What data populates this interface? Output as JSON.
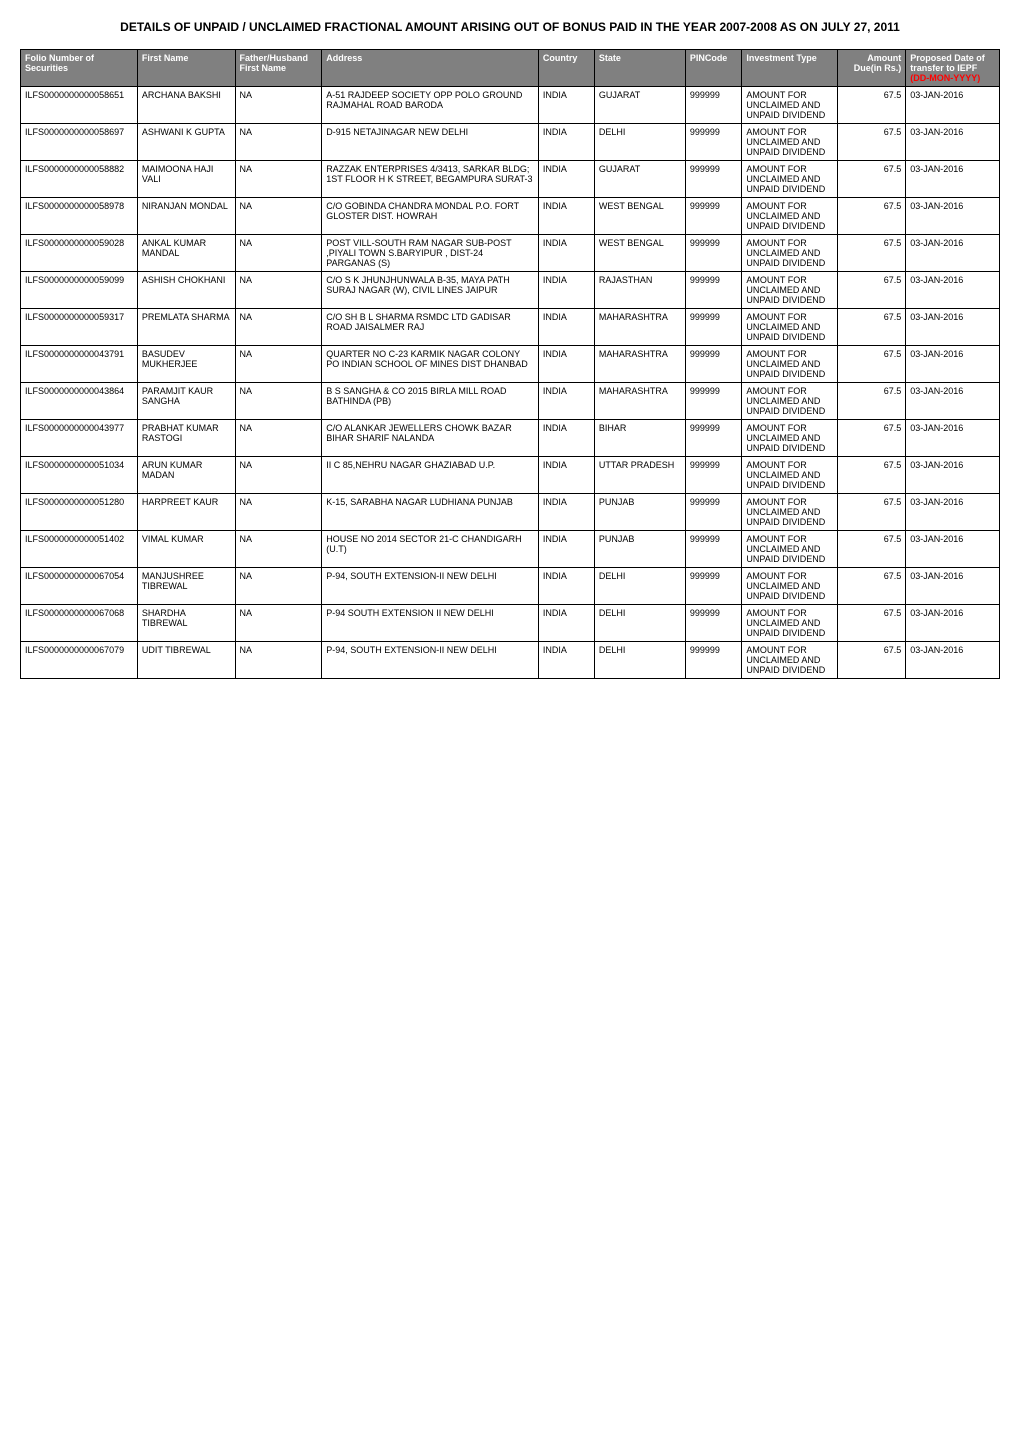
{
  "title": "DETAILS OF UNPAID / UNCLAIMED FRACTIONAL AMOUNT ARISING OUT OF BONUS PAID IN THE YEAR 2007-2008 AS ON JULY 27, 2011",
  "columns": [
    "Folio Number of Securities",
    "First Name",
    "Father/Husband First Name",
    "Address",
    "Country",
    "State",
    "PINCode",
    "Investment Type",
    "Amount Due(in Rs.)",
    "Proposed Date of transfer to IEPF"
  ],
  "date_label_red": "(DD-MON-YYYY)",
  "rows": [
    {
      "folio": "ILFS0000000000058651",
      "first_name": "ARCHANA BAKSHI",
      "father": "NA",
      "address": "A-51 RAJDEEP SOCIETY OPP POLO GROUND RAJMAHAL ROAD BARODA",
      "country": "INDIA",
      "state": "GUJARAT",
      "pincode": "999999",
      "investment": "AMOUNT FOR UNCLAIMED AND UNPAID DIVIDEND",
      "amount": "67.5",
      "date": "03-JAN-2016"
    },
    {
      "folio": "ILFS0000000000058697",
      "first_name": "ASHWANI K GUPTA",
      "father": "NA",
      "address": "D-915 NETAJINAGAR NEW DELHI",
      "country": "INDIA",
      "state": "DELHI",
      "pincode": "999999",
      "investment": "AMOUNT FOR UNCLAIMED AND UNPAID DIVIDEND",
      "amount": "67.5",
      "date": "03-JAN-2016"
    },
    {
      "folio": "ILFS0000000000058882",
      "first_name": "MAIMOONA HAJI VALI",
      "father": "NA",
      "address": "RAZZAK ENTERPRISES 4/3413, SARKAR BLDG; 1ST FLOOR H K STREET, BEGAMPURA SURAT-3",
      "country": "INDIA",
      "state": "GUJARAT",
      "pincode": "999999",
      "investment": "AMOUNT FOR UNCLAIMED AND UNPAID DIVIDEND",
      "amount": "67.5",
      "date": "03-JAN-2016"
    },
    {
      "folio": "ILFS0000000000058978",
      "first_name": "NIRANJAN MONDAL",
      "father": "NA",
      "address": "C/O GOBINDA CHANDRA MONDAL P.O. FORT GLOSTER DIST. HOWRAH",
      "country": "INDIA",
      "state": "WEST BENGAL",
      "pincode": "999999",
      "investment": "AMOUNT FOR UNCLAIMED AND UNPAID DIVIDEND",
      "amount": "67.5",
      "date": "03-JAN-2016"
    },
    {
      "folio": "ILFS0000000000059028",
      "first_name": "ANKAL KUMAR MANDAL",
      "father": "NA",
      "address": "POST VILL-SOUTH RAM NAGAR SUB-POST ,PIYALI TOWN S.BARYIPUR , DIST-24 PARGANAS (S)",
      "country": "INDIA",
      "state": "WEST BENGAL",
      "pincode": "999999",
      "investment": "AMOUNT FOR UNCLAIMED AND UNPAID DIVIDEND",
      "amount": "67.5",
      "date": "03-JAN-2016"
    },
    {
      "folio": "ILFS0000000000059099",
      "first_name": "ASHISH CHOKHANI",
      "father": "NA",
      "address": "C/O S K JHUNJHUNWALA B-35, MAYA PATH SURAJ NAGAR (W), CIVIL LINES JAIPUR",
      "country": "INDIA",
      "state": "RAJASTHAN",
      "pincode": "999999",
      "investment": "AMOUNT FOR UNCLAIMED AND UNPAID DIVIDEND",
      "amount": "67.5",
      "date": "03-JAN-2016"
    },
    {
      "folio": "ILFS0000000000059317",
      "first_name": "PREMLATA SHARMA",
      "father": "NA",
      "address": "C/O SH B L SHARMA RSMDC LTD GADISAR ROAD JAISALMER RAJ",
      "country": "INDIA",
      "state": "MAHARASHTRA",
      "pincode": "999999",
      "investment": "AMOUNT FOR UNCLAIMED AND UNPAID DIVIDEND",
      "amount": "67.5",
      "date": "03-JAN-2016"
    },
    {
      "folio": "ILFS0000000000043791",
      "first_name": "BASUDEV MUKHERJEE",
      "father": "NA",
      "address": "QUARTER NO C-23 KARMIK NAGAR COLONY PO INDIAN SCHOOL OF MINES DIST DHANBAD",
      "country": "INDIA",
      "state": "MAHARASHTRA",
      "pincode": "999999",
      "investment": "AMOUNT FOR UNCLAIMED AND UNPAID DIVIDEND",
      "amount": "67.5",
      "date": "03-JAN-2016"
    },
    {
      "folio": "ILFS0000000000043864",
      "first_name": "PARAMJIT KAUR SANGHA",
      "father": "NA",
      "address": "B S SANGHA & CO 2015 BIRLA MILL ROAD BATHINDA (PB)",
      "country": "INDIA",
      "state": "MAHARASHTRA",
      "pincode": "999999",
      "investment": "AMOUNT FOR UNCLAIMED AND UNPAID DIVIDEND",
      "amount": "67.5",
      "date": "03-JAN-2016"
    },
    {
      "folio": "ILFS0000000000043977",
      "first_name": "PRABHAT KUMAR RASTOGI",
      "father": "NA",
      "address": "C/O ALANKAR JEWELLERS CHOWK BAZAR BIHAR SHARIF NALANDA",
      "country": "INDIA",
      "state": "BIHAR",
      "pincode": "999999",
      "investment": "AMOUNT FOR UNCLAIMED AND UNPAID DIVIDEND",
      "amount": "67.5",
      "date": "03-JAN-2016"
    },
    {
      "folio": "ILFS0000000000051034",
      "first_name": "ARUN KUMAR MADAN",
      "father": "NA",
      "address": "II C 85,NEHRU NAGAR GHAZIABAD U.P.",
      "country": "INDIA",
      "state": "UTTAR PRADESH",
      "pincode": "999999",
      "investment": "AMOUNT FOR UNCLAIMED AND UNPAID DIVIDEND",
      "amount": "67.5",
      "date": "03-JAN-2016"
    },
    {
      "folio": "ILFS0000000000051280",
      "first_name": "HARPREET KAUR",
      "father": "NA",
      "address": "K-15, SARABHA NAGAR LUDHIANA PUNJAB",
      "country": "INDIA",
      "state": "PUNJAB",
      "pincode": "999999",
      "investment": "AMOUNT FOR UNCLAIMED AND UNPAID DIVIDEND",
      "amount": "67.5",
      "date": "03-JAN-2016"
    },
    {
      "folio": "ILFS0000000000051402",
      "first_name": "VIMAL KUMAR",
      "father": "NA",
      "address": "HOUSE NO 2014 SECTOR 21-C CHANDIGARH (U.T)",
      "country": "INDIA",
      "state": "PUNJAB",
      "pincode": "999999",
      "investment": "AMOUNT FOR UNCLAIMED AND UNPAID DIVIDEND",
      "amount": "67.5",
      "date": "03-JAN-2016"
    },
    {
      "folio": "ILFS0000000000067054",
      "first_name": "MANJUSHREE TIBREWAL",
      "father": "NA",
      "address": "P-94, SOUTH EXTENSION-II NEW DELHI",
      "country": "INDIA",
      "state": "DELHI",
      "pincode": "999999",
      "investment": "AMOUNT FOR UNCLAIMED AND UNPAID DIVIDEND",
      "amount": "67.5",
      "date": "03-JAN-2016"
    },
    {
      "folio": "ILFS0000000000067068",
      "first_name": "SHARDHA TIBREWAL",
      "father": "NA",
      "address": "P-94 SOUTH EXTENSION II NEW DELHI",
      "country": "INDIA",
      "state": "DELHI",
      "pincode": "999999",
      "investment": "AMOUNT FOR UNCLAIMED AND UNPAID DIVIDEND",
      "amount": "67.5",
      "date": "03-JAN-2016"
    },
    {
      "folio": "ILFS0000000000067079",
      "first_name": "UDIT TIBREWAL",
      "father": "NA",
      "address": "P-94, SOUTH EXTENSION-II NEW DELHI",
      "country": "INDIA",
      "state": "DELHI",
      "pincode": "999999",
      "investment": "AMOUNT FOR UNCLAIMED AND UNPAID DIVIDEND",
      "amount": "67.5",
      "date": "03-JAN-2016"
    }
  ],
  "column_widths": [
    "110px",
    "95px",
    "80px",
    "240px",
    "50px",
    "85px",
    "50px",
    "95px",
    "65px",
    "95px"
  ],
  "header_bg": "#808080",
  "header_color": "#ffffff",
  "border_color": "#000000",
  "red_color": "#ff0000"
}
